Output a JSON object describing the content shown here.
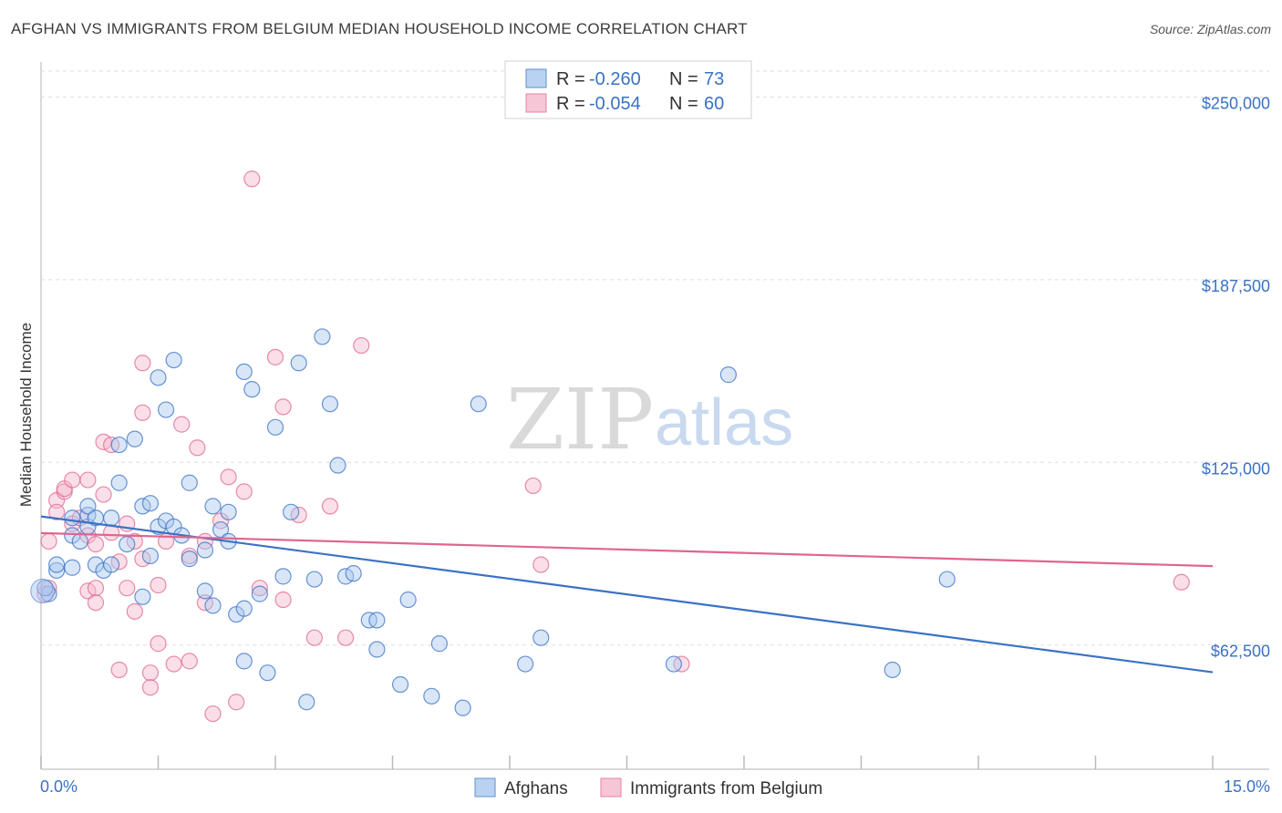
{
  "title": "AFGHAN VS IMMIGRANTS FROM BELGIUM MEDIAN HOUSEHOLD INCOME CORRELATION CHART",
  "source": "Source: ZipAtlas.com",
  "watermark": {
    "zip": "ZIP",
    "atlas": "atlas"
  },
  "colors": {
    "blue": "#3a72c4",
    "blue_fill": "#a9c8f0",
    "pink": "#e0658f",
    "pink_fill": "#f5b8cc"
  },
  "legend": {
    "series": [
      {
        "r_label": "R =",
        "r_value": "-0.260",
        "n_label": "N =",
        "n_value": "73"
      },
      {
        "r_label": "R =",
        "r_value": "-0.054",
        "n_label": "N =",
        "n_value": "60"
      }
    ]
  },
  "bottom_legend": [
    "Afghans",
    "Immigrants from Belgium"
  ],
  "chart_data": {
    "type": "scatter",
    "xlabel": "",
    "ylabel": "Median Household Income",
    "xlim": [
      0,
      15
    ],
    "ylim": [
      20000,
      262000
    ],
    "x_tick_labels": [
      "0.0%",
      "15.0%"
    ],
    "y_ticks": [
      62500,
      125000,
      187500,
      250000
    ],
    "y_tick_labels": [
      "$62,500",
      "$125,000",
      "$187,500",
      "$250,000"
    ],
    "series": [
      {
        "name": "Afghans",
        "trend": {
          "x": [
            0,
            15
          ],
          "y": [
            106500,
            53200
          ]
        },
        "points": [
          [
            0.1,
            80000
          ],
          [
            0.2,
            88000
          ],
          [
            0.2,
            90000
          ],
          [
            0.4,
            106000
          ],
          [
            0.4,
            100000
          ],
          [
            0.4,
            89000
          ],
          [
            0.5,
            98000
          ],
          [
            0.6,
            103000
          ],
          [
            0.6,
            107000
          ],
          [
            0.6,
            110000
          ],
          [
            0.7,
            106000
          ],
          [
            0.7,
            90000
          ],
          [
            0.8,
            88000
          ],
          [
            0.9,
            90000
          ],
          [
            0.9,
            106000
          ],
          [
            1.0,
            118000
          ],
          [
            1.0,
            131000
          ],
          [
            1.1,
            97000
          ],
          [
            1.2,
            133000
          ],
          [
            1.3,
            79000
          ],
          [
            1.3,
            110000
          ],
          [
            1.4,
            111000
          ],
          [
            1.4,
            93000
          ],
          [
            1.5,
            103000
          ],
          [
            1.5,
            154000
          ],
          [
            1.6,
            143000
          ],
          [
            1.6,
            105000
          ],
          [
            1.7,
            160000
          ],
          [
            1.7,
            103000
          ],
          [
            1.8,
            100000
          ],
          [
            1.9,
            118000
          ],
          [
            1.9,
            92000
          ],
          [
            2.1,
            95000
          ],
          [
            2.1,
            81000
          ],
          [
            2.2,
            110000
          ],
          [
            2.2,
            76000
          ],
          [
            2.3,
            102000
          ],
          [
            2.4,
            98000
          ],
          [
            2.4,
            108000
          ],
          [
            2.5,
            73000
          ],
          [
            2.6,
            156000
          ],
          [
            2.6,
            57000
          ],
          [
            2.6,
            75000
          ],
          [
            2.7,
            150000
          ],
          [
            2.8,
            80000
          ],
          [
            2.9,
            53000
          ],
          [
            3.0,
            137000
          ],
          [
            3.1,
            86000
          ],
          [
            3.2,
            108000
          ],
          [
            3.3,
            159000
          ],
          [
            3.4,
            43000
          ],
          [
            3.5,
            85000
          ],
          [
            3.6,
            168000
          ],
          [
            3.7,
            145000
          ],
          [
            3.8,
            124000
          ],
          [
            3.9,
            86000
          ],
          [
            4.0,
            87000
          ],
          [
            4.2,
            71000
          ],
          [
            4.3,
            71000
          ],
          [
            4.3,
            61000
          ],
          [
            4.6,
            49000
          ],
          [
            4.7,
            78000
          ],
          [
            5.0,
            45000
          ],
          [
            5.1,
            63000
          ],
          [
            5.4,
            41000
          ],
          [
            5.6,
            145000
          ],
          [
            6.2,
            56000
          ],
          [
            6.4,
            65000
          ],
          [
            8.1,
            56000
          ],
          [
            8.8,
            155000
          ],
          [
            10.9,
            54000
          ],
          [
            11.6,
            85000
          ],
          [
            0.05,
            82000
          ]
        ]
      },
      {
        "name": "Immigrants from Belgium",
        "trend": {
          "x": [
            0,
            15
          ],
          "y": [
            100800,
            89500
          ]
        },
        "points": [
          [
            0.05,
            80000
          ],
          [
            0.1,
            98000
          ],
          [
            0.1,
            82000
          ],
          [
            0.2,
            112000
          ],
          [
            0.2,
            108000
          ],
          [
            0.3,
            115000
          ],
          [
            0.3,
            116000
          ],
          [
            0.4,
            104000
          ],
          [
            0.4,
            119000
          ],
          [
            0.5,
            106000
          ],
          [
            0.6,
            119000
          ],
          [
            0.6,
            100000
          ],
          [
            0.6,
            81000
          ],
          [
            0.7,
            97000
          ],
          [
            0.7,
            82000
          ],
          [
            0.7,
            77000
          ],
          [
            0.8,
            132000
          ],
          [
            0.8,
            114000
          ],
          [
            0.9,
            101000
          ],
          [
            0.9,
            131000
          ],
          [
            1.0,
            91000
          ],
          [
            1.0,
            54000
          ],
          [
            1.1,
            104000
          ],
          [
            1.1,
            82000
          ],
          [
            1.2,
            98000
          ],
          [
            1.2,
            74000
          ],
          [
            1.3,
            159000
          ],
          [
            1.3,
            142000
          ],
          [
            1.3,
            92000
          ],
          [
            1.4,
            53000
          ],
          [
            1.4,
            48000
          ],
          [
            1.5,
            63000
          ],
          [
            1.5,
            83000
          ],
          [
            1.6,
            98000
          ],
          [
            1.7,
            56000
          ],
          [
            1.8,
            138000
          ],
          [
            1.9,
            57000
          ],
          [
            1.9,
            93000
          ],
          [
            2.0,
            130000
          ],
          [
            2.1,
            77000
          ],
          [
            2.1,
            98000
          ],
          [
            2.2,
            39000
          ],
          [
            2.3,
            105000
          ],
          [
            2.4,
            120000
          ],
          [
            2.5,
            43000
          ],
          [
            2.6,
            115000
          ],
          [
            2.7,
            222000
          ],
          [
            2.8,
            82000
          ],
          [
            3.0,
            161000
          ],
          [
            3.1,
            78000
          ],
          [
            3.1,
            144000
          ],
          [
            3.3,
            107000
          ],
          [
            3.5,
            65000
          ],
          [
            3.7,
            110000
          ],
          [
            3.9,
            65000
          ],
          [
            4.1,
            165000
          ],
          [
            6.3,
            117000
          ],
          [
            6.4,
            90000
          ],
          [
            8.2,
            56000
          ],
          [
            14.6,
            84000
          ]
        ]
      }
    ]
  }
}
